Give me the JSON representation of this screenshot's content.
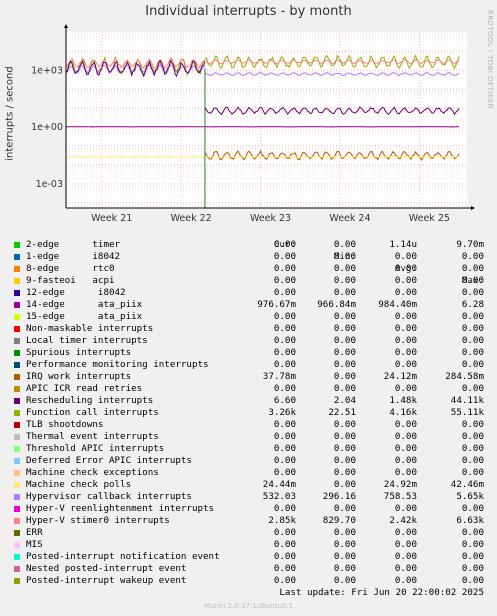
{
  "title": "Individual interrupts - by month",
  "side_label": "RRDTOOL / TOBI OETIKER",
  "footer": "Last update: Fri Jun 20 22:00:02 2025",
  "munin_version": "Munin 2.0.37-1ubuntu0.1",
  "legend_headers": {
    "cur": "Cur:",
    "min": "Min:",
    "avg": "Avg:",
    "max": "Max:"
  },
  "legend": [
    {
      "name": "2-edge      timer",
      "color": "#00cc00",
      "cur": "0.00",
      "min": "0.00",
      "avg": "1.14u",
      "max": "9.70m"
    },
    {
      "name": "1-edge      i8042",
      "color": "#0066b3",
      "cur": "0.00",
      "min": "0.00",
      "avg": "0.00",
      "max": "0.00"
    },
    {
      "name": "8-edge      rtc0",
      "color": "#ff8000",
      "cur": "0.00",
      "min": "0.00",
      "avg": "0.00",
      "max": "0.00"
    },
    {
      "name": "9-fasteoi   acpi",
      "color": "#ffcc00",
      "cur": "0.00",
      "min": "0.00",
      "avg": "0.00",
      "max": "0.00"
    },
    {
      "name": "12-edge      i8042",
      "color": "#330099",
      "cur": "0.00",
      "min": "0.00",
      "avg": "0.00",
      "max": "0.00"
    },
    {
      "name": "14-edge      ata_piix",
      "color": "#990099",
      "cur": "976.67m",
      "min": "966.84m",
      "avg": "984.40m",
      "max": "6.28"
    },
    {
      "name": "15-edge      ata_piix",
      "color": "#ccff00",
      "cur": "0.00",
      "min": "0.00",
      "avg": "0.00",
      "max": "0.00"
    },
    {
      "name": "Non-maskable interrupts",
      "color": "#ff0000",
      "cur": "0.00",
      "min": "0.00",
      "avg": "0.00",
      "max": "0.00"
    },
    {
      "name": "Local timer interrupts",
      "color": "#808080",
      "cur": "0.00",
      "min": "0.00",
      "avg": "0.00",
      "max": "0.00"
    },
    {
      "name": "Spurious interrupts",
      "color": "#008f00",
      "cur": "0.00",
      "min": "0.00",
      "avg": "0.00",
      "max": "0.00"
    },
    {
      "name": "Performance monitoring interrupts",
      "color": "#00487d",
      "cur": "0.00",
      "min": "0.00",
      "avg": "0.00",
      "max": "0.00"
    },
    {
      "name": "IRQ work interrupts",
      "color": "#b35a00",
      "cur": "37.78m",
      "min": "0.00",
      "avg": "24.12m",
      "max": "284.58m"
    },
    {
      "name": "APIC ICR read retries",
      "color": "#b38f00",
      "cur": "0.00",
      "min": "0.00",
      "avg": "0.00",
      "max": "0.00"
    },
    {
      "name": "Rescheduling interrupts",
      "color": "#6b006b",
      "cur": "6.60",
      "min": "2.04",
      "avg": "1.48k",
      "max": "44.11k"
    },
    {
      "name": "Function call interrupts",
      "color": "#8fb300",
      "cur": "3.26k",
      "min": "22.51",
      "avg": "4.16k",
      "max": "55.11k"
    },
    {
      "name": "TLB shootdowns",
      "color": "#b30000",
      "cur": "0.00",
      "min": "0.00",
      "avg": "0.00",
      "max": "0.00"
    },
    {
      "name": "Thermal event interrupts",
      "color": "#bebebe",
      "cur": "0.00",
      "min": "0.00",
      "avg": "0.00",
      "max": "0.00"
    },
    {
      "name": "Threshold APIC interrupts",
      "color": "#80ff80",
      "cur": "0.00",
      "min": "0.00",
      "avg": "0.00",
      "max": "0.00"
    },
    {
      "name": "Deferred Error APIC interrupts",
      "color": "#80c9ff",
      "cur": "0.00",
      "min": "0.00",
      "avg": "0.00",
      "max": "0.00"
    },
    {
      "name": "Machine check exceptions",
      "color": "#ffc080",
      "cur": "0.00",
      "min": "0.00",
      "avg": "0.00",
      "max": "0.00"
    },
    {
      "name": "Machine check polls",
      "color": "#ffe680",
      "cur": "24.44m",
      "min": "0.00",
      "avg": "24.92m",
      "max": "42.46m"
    },
    {
      "name": "Hypervisor callback interrupts",
      "color": "#aa80ff",
      "cur": "532.03",
      "min": "296.16",
      "avg": "758.53",
      "max": "5.65k"
    },
    {
      "name": "Hyper-V reenlightenment interrupts",
      "color": "#ee00cc",
      "cur": "0.00",
      "min": "0.00",
      "avg": "0.00",
      "max": "0.00"
    },
    {
      "name": "Hyper-V stimer0 interrupts",
      "color": "#ff8080",
      "cur": "2.85k",
      "min": "829.70",
      "avg": "2.42k",
      "max": "6.63k"
    },
    {
      "name": "ERR",
      "color": "#666600",
      "cur": "0.00",
      "min": "0.00",
      "avg": "0.00",
      "max": "0.00"
    },
    {
      "name": "MIS",
      "color": "#ffbfff",
      "cur": "0.00",
      "min": "0.00",
      "avg": "0.00",
      "max": "0.00"
    },
    {
      "name": "Posted-interrupt notification event",
      "color": "#00ffcc",
      "cur": "0.00",
      "min": "0.00",
      "avg": "0.00",
      "max": "0.00"
    },
    {
      "name": "Nested posted-interrupt event",
      "color": "#cc6699",
      "cur": "0.00",
      "min": "0.00",
      "avg": "0.00",
      "max": "0.00"
    },
    {
      "name": "Posted-interrupt wakeup event",
      "color": "#999900",
      "cur": "0.00",
      "min": "0.00",
      "avg": "0.00",
      "max": "0.00"
    }
  ],
  "chart_data": {
    "type": "line",
    "ylabel": "interrupts / second",
    "yscale": "log",
    "ylim": [
      5e-05,
      100000
    ],
    "yticks": [
      {
        "value": 0.001,
        "label": "1e-03"
      },
      {
        "value": 1,
        "label": "1e+00"
      },
      {
        "value": 1000,
        "label": "1e+03"
      }
    ],
    "x_range": [
      20.55,
      25.6
    ],
    "xticks": [
      {
        "value": 21,
        "label": "Week 21"
      },
      {
        "value": 22,
        "label": "Week 22"
      },
      {
        "value": 23,
        "label": "Week 23"
      },
      {
        "value": 24,
        "label": "Week 24"
      },
      {
        "value": 25,
        "label": "Week 25"
      }
    ],
    "grid": true,
    "series": [
      {
        "name": "Function call interrupts",
        "color": "#8fb300",
        "segments": [
          {
            "x": [
              20.55,
              22.3
            ],
            "base": 1500,
            "spread": 2.2,
            "period": 0.14
          },
          {
            "x": [
              22.3,
              25.5
            ],
            "base": 2600,
            "spread": 1.8,
            "period": 0.14
          }
        ]
      },
      {
        "name": "Hyper-V stimer0 interrupts",
        "color": "#ff8080",
        "segments": [
          {
            "x": [
              20.55,
              22.3
            ],
            "base": 2200,
            "spread": 1.6,
            "period": 0.14
          },
          {
            "x": [
              22.3,
              25.5
            ],
            "base": 2700,
            "spread": 1.2,
            "period": 0.14
          }
        ]
      },
      {
        "name": "Hypervisor callback interrupts",
        "color": "#aa80ff",
        "segments": [
          {
            "x": [
              20.55,
              22.3
            ],
            "base": 1100,
            "spread": 1.5,
            "period": 0.14
          },
          {
            "x": [
              22.3,
              25.5
            ],
            "base": 600,
            "spread": 1.15,
            "period": 0.14
          }
        ]
      },
      {
        "name": "Rescheduling interrupts",
        "color": "#6b006b",
        "segments": [
          {
            "x": [
              20.55,
              22.3
            ],
            "base": 1200,
            "spread": 2.0,
            "period": 0.14
          },
          {
            "x": [
              22.3,
              25.5
            ],
            "base": 7,
            "spread": 1.4,
            "period": 0.14
          }
        ]
      },
      {
        "name": "14-edge ata_piix",
        "color": "#990099",
        "segments": [
          {
            "x": [
              20.55,
              25.5
            ],
            "base": 0.98,
            "spread": 1.01,
            "period": 0.5
          }
        ]
      },
      {
        "name": "IRQ work interrupts",
        "color": "#b35a00",
        "segments": [
          {
            "x": [
              22.3,
              25.5
            ],
            "base": 0.03,
            "spread": 1.5,
            "period": 0.14
          }
        ]
      },
      {
        "name": "Machine check polls",
        "color": "#ffe680",
        "segments": [
          {
            "x": [
              20.55,
              25.5
            ],
            "base": 0.025,
            "spread": 1.0,
            "period": 1
          }
        ]
      }
    ]
  }
}
